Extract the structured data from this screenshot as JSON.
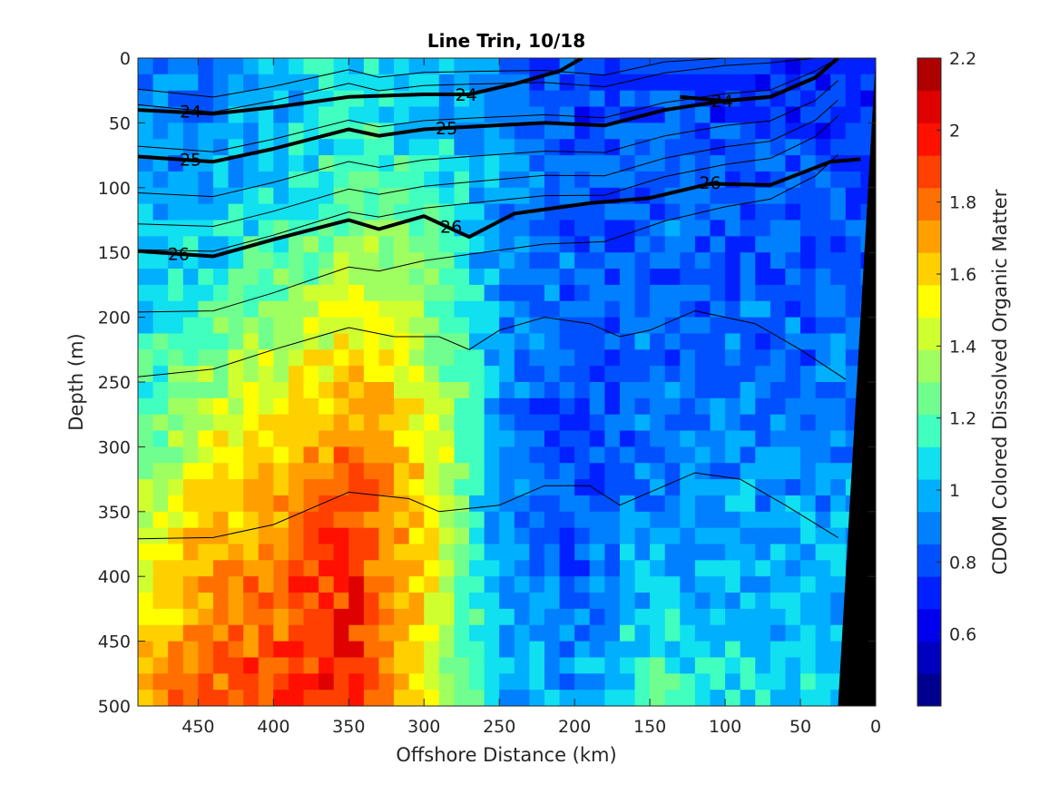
{
  "chart_data": {
    "type": "heatmap",
    "title": "Line Trin, 10/18",
    "xlabel": "Offshore Distance (km)",
    "ylabel": "Depth (m)",
    "colorbar_label": "CDOM Colored Dissolved Organic Matter",
    "xlim": [
      490,
      0
    ],
    "ylim": [
      500,
      0
    ],
    "x_reversed": true,
    "y_reversed": true,
    "x_ticks": [
      450,
      400,
      350,
      300,
      250,
      200,
      150,
      100,
      50,
      0
    ],
    "y_ticks": [
      0,
      50,
      100,
      150,
      200,
      250,
      300,
      350,
      400,
      450,
      500
    ],
    "colorbar": {
      "range": [
        0.4,
        2.2
      ],
      "ticks": [
        0.6,
        0.8,
        1,
        1.2,
        1.4,
        1.6,
        1.8,
        2,
        2.2
      ],
      "colors": [
        "#00008f",
        "#0000bf",
        "#0000ef",
        "#0020ff",
        "#0050ff",
        "#0080ff",
        "#00b0ff",
        "#10e0ef",
        "#40ffbf",
        "#70ff8f",
        "#a0ff60",
        "#d0ff30",
        "#ffff00",
        "#ffd000",
        "#ffa000",
        "#ff7000",
        "#ff4000",
        "#ff1000",
        "#df0000",
        "#af0000"
      ]
    },
    "cdom_columns": {
      "x_km": [
        490,
        450,
        400,
        350,
        300,
        250,
        200,
        150,
        100,
        50,
        0
      ],
      "depth_m": [
        0,
        100,
        200,
        300,
        400,
        500
      ],
      "values": [
        [
          0.85,
          0.95,
          1.05,
          1.25,
          1.45,
          1.7
        ],
        [
          0.85,
          0.95,
          1.15,
          1.45,
          1.7,
          1.85
        ],
        [
          0.95,
          1.05,
          1.3,
          1.6,
          1.8,
          1.85
        ],
        [
          1.1,
          1.2,
          1.5,
          1.8,
          1.95,
          2.0
        ],
        [
          0.95,
          1.15,
          1.35,
          1.6,
          1.6,
          1.55
        ],
        [
          0.9,
          0.95,
          0.95,
          0.9,
          0.95,
          1.0
        ],
        [
          0.75,
          0.8,
          0.85,
          0.75,
          0.85,
          0.95
        ],
        [
          0.8,
          0.85,
          0.85,
          0.85,
          1.0,
          1.2
        ],
        [
          0.75,
          0.8,
          0.85,
          0.9,
          1.0,
          1.1
        ],
        [
          0.7,
          0.8,
          0.85,
          0.9,
          1.0,
          1.05
        ],
        [
          0.7,
          0.8,
          0.85,
          0.9,
          1.0,
          1.05
        ]
      ]
    },
    "isopycnals": [
      {
        "label": "24",
        "bold": true,
        "points": [
          [
            490,
            40
          ],
          [
            440,
            43
          ],
          [
            400,
            38
          ],
          [
            350,
            30
          ],
          [
            300,
            28
          ],
          [
            270,
            28
          ],
          [
            240,
            20
          ],
          [
            210,
            10
          ],
          [
            195,
            0
          ]
        ]
      },
      {
        "label": "24",
        "bold": true,
        "points": [
          [
            130,
            30
          ],
          [
            100,
            33
          ],
          [
            70,
            30
          ],
          [
            40,
            15
          ],
          [
            25,
            0
          ]
        ]
      },
      {
        "label": "25",
        "bold": true,
        "points": [
          [
            490,
            76
          ],
          [
            440,
            80
          ],
          [
            400,
            70
          ],
          [
            350,
            55
          ],
          [
            330,
            60
          ],
          [
            300,
            55
          ],
          [
            270,
            53
          ],
          [
            220,
            50
          ],
          [
            180,
            52
          ],
          [
            140,
            40
          ],
          [
            100,
            33
          ],
          [
            70,
            30
          ],
          [
            40,
            15
          ],
          [
            25,
            0
          ]
        ]
      },
      {
        "label": "26",
        "bold": true,
        "points": [
          [
            490,
            149
          ],
          [
            440,
            153
          ],
          [
            400,
            140
          ],
          [
            350,
            125
          ],
          [
            330,
            132
          ],
          [
            300,
            122
          ],
          [
            270,
            138
          ],
          [
            240,
            120
          ],
          [
            190,
            112
          ],
          [
            150,
            108
          ],
          [
            110,
            97
          ],
          [
            70,
            98
          ],
          [
            30,
            80
          ],
          [
            10,
            78
          ]
        ]
      }
    ],
    "thin_isopycnals_depth_m": [
      8,
      20,
      52,
      60,
      88,
      112,
      132,
      180
    ],
    "deep_isopycnals": [
      {
        "points": [
          [
            490,
            246
          ],
          [
            440,
            240
          ],
          [
            400,
            225
          ],
          [
            350,
            208
          ],
          [
            320,
            215
          ],
          [
            290,
            215
          ],
          [
            270,
            225
          ],
          [
            250,
            210
          ],
          [
            220,
            200
          ],
          [
            190,
            205
          ],
          [
            170,
            215
          ],
          [
            150,
            210
          ],
          [
            120,
            195
          ],
          [
            100,
            200
          ],
          [
            80,
            205
          ],
          [
            50,
            225
          ],
          [
            20,
            248
          ]
        ]
      },
      {
        "points": [
          [
            490,
            371
          ],
          [
            440,
            370
          ],
          [
            400,
            360
          ],
          [
            350,
            335
          ],
          [
            310,
            340
          ],
          [
            290,
            350
          ],
          [
            250,
            345
          ],
          [
            220,
            330
          ],
          [
            190,
            330
          ],
          [
            170,
            345
          ],
          [
            150,
            335
          ],
          [
            120,
            320
          ],
          [
            90,
            325
          ],
          [
            60,
            345
          ],
          [
            25,
            370
          ]
        ]
      }
    ],
    "bottom_topography": [
      [
        0,
        0
      ],
      [
        25,
        500
      ],
      [
        0,
        500
      ]
    ]
  }
}
